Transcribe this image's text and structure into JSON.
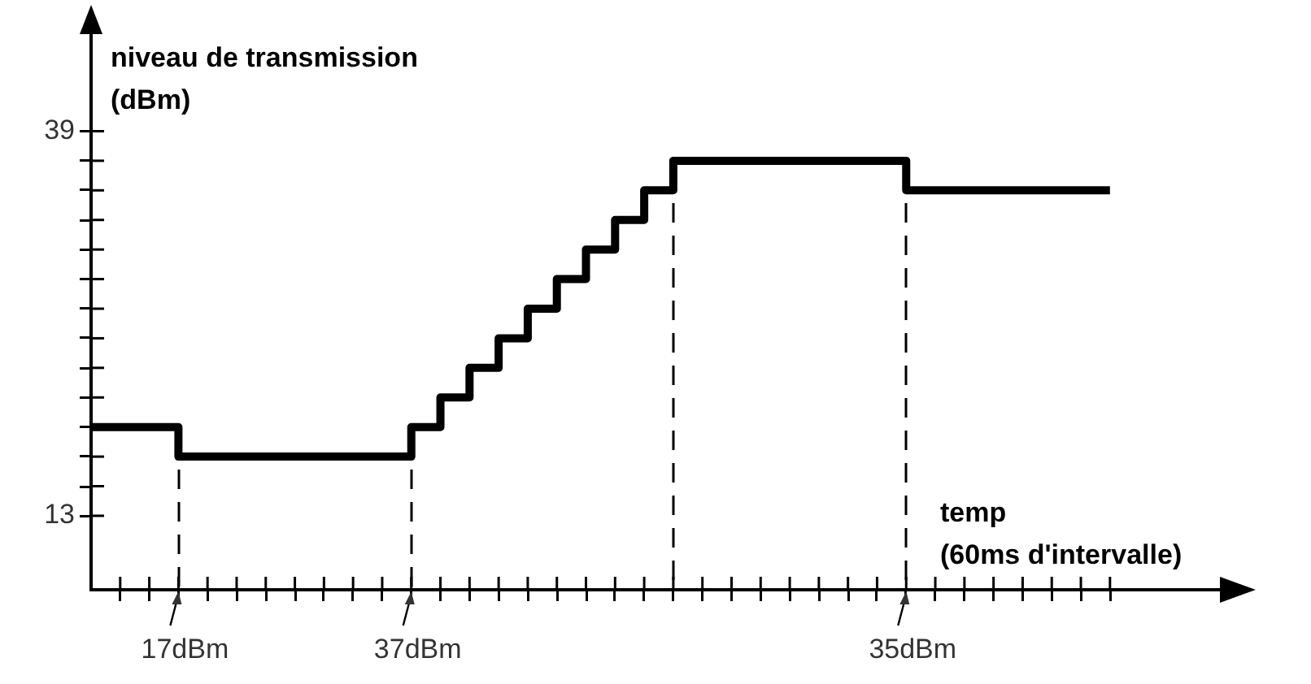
{
  "chart_data": {
    "type": "step",
    "xlabel": "temp\n(60ms d'intervalle)",
    "ylabel": "niveau de transmission\n(dBm)",
    "categories": [
      null,
      null,
      null,
      null,
      null,
      null,
      null,
      null,
      null,
      null,
      null,
      null,
      null,
      null,
      null,
      null,
      null,
      null,
      null,
      null,
      null,
      null,
      null,
      null,
      null,
      null,
      null,
      null,
      null,
      null,
      null,
      null,
      null,
      null,
      null,
      null
    ],
    "series": [
      {
        "color": "#000000",
        "values": [
          19,
          19,
          19,
          17,
          17,
          17,
          17,
          17,
          17,
          17,
          17,
          19,
          21,
          23,
          25,
          27,
          29,
          31,
          33,
          35,
          37,
          37,
          37,
          37,
          37,
          37,
          37,
          37,
          35,
          35,
          35,
          35,
          35,
          35,
          35,
          35
        ]
      }
    ],
    "ylim": [
      8,
      46
    ],
    "yticks": [
      13,
      {
        "value": 15,
        "label": null
      },
      {
        "value": 17,
        "label": null
      },
      {
        "value": 19,
        "label": null
      },
      {
        "value": 21,
        "label": null
      },
      {
        "value": 23,
        "label": null
      },
      {
        "value": 25,
        "label": null
      },
      {
        "value": 27,
        "label": null
      },
      {
        "value": 29,
        "label": null
      },
      {
        "value": 31,
        "label": null
      },
      {
        "value": 33,
        "label": null
      },
      {
        "value": 35,
        "label": null
      },
      {
        "value": 37,
        "label": null
      },
      39
    ],
    "annotations": [
      "17dBm",
      "37dBm",
      "35dBm"
    ],
    "grid": false,
    "legend": false,
    "marker": "none",
    "line_style": "solid"
  }
}
